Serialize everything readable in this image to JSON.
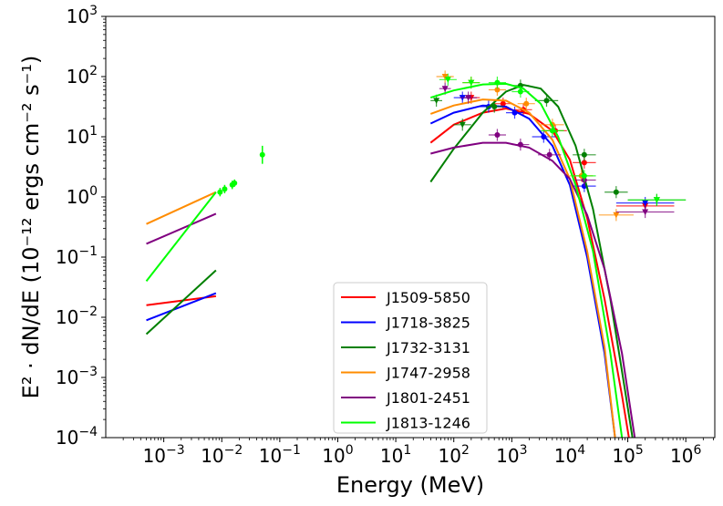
{
  "chart_data": {
    "type": "line",
    "xscale": "log",
    "yscale": "log",
    "xlim_exp": [
      -4,
      6.5
    ],
    "ylim_exp": [
      -4,
      3
    ],
    "xlabel": "Energy (MeV)",
    "ylabel": "E² · dN/dE (10⁻¹² ergs cm⁻² s⁻¹)",
    "x_ticks": [
      {
        "exp": -3,
        "base": "10",
        "sup": "−3"
      },
      {
        "exp": -2,
        "base": "10",
        "sup": "−2"
      },
      {
        "exp": -1,
        "base": "10",
        "sup": "−1"
      },
      {
        "exp": 0,
        "base": "10",
        "sup": "0"
      },
      {
        "exp": 1,
        "base": "10",
        "sup": "1"
      },
      {
        "exp": 2,
        "base": "10",
        "sup": "2"
      },
      {
        "exp": 3,
        "base": "10",
        "sup": "3"
      },
      {
        "exp": 4,
        "base": "10",
        "sup": "4"
      },
      {
        "exp": 5,
        "base": "10",
        "sup": "5"
      },
      {
        "exp": 6,
        "base": "10",
        "sup": "6"
      }
    ],
    "y_ticks": [
      {
        "exp": -4,
        "base": "10",
        "sup": "−4"
      },
      {
        "exp": -3,
        "base": "10",
        "sup": "−3"
      },
      {
        "exp": -2,
        "base": "10",
        "sup": "−2"
      },
      {
        "exp": -1,
        "base": "10",
        "sup": "−1"
      },
      {
        "exp": 0,
        "base": "10",
        "sup": "0"
      },
      {
        "exp": 1,
        "base": "10",
        "sup": "1"
      },
      {
        "exp": 2,
        "base": "10",
        "sup": "2"
      },
      {
        "exp": 3,
        "base": "10",
        "sup": "3"
      }
    ],
    "legend_position": "lower-center",
    "series": [
      {
        "name": "J1509-5850",
        "color": "#ff0000",
        "radio": [
          [
            -3.3,
            -1.8
          ],
          [
            -2.1,
            -1.65
          ]
        ],
        "gamma": [
          [
            1.6,
            0.9
          ],
          [
            2.0,
            1.2
          ],
          [
            2.5,
            1.4
          ],
          [
            2.9,
            1.47
          ],
          [
            3.3,
            1.38
          ],
          [
            3.7,
            1.1
          ],
          [
            4.0,
            0.62
          ],
          [
            4.3,
            -0.35
          ],
          [
            4.6,
            -1.7
          ],
          [
            4.9,
            -3.3
          ],
          [
            5.02,
            -4.0
          ]
        ],
        "points": [
          [
            2.3,
            1.65,
            0.15,
            0.1,
            "v"
          ],
          [
            2.85,
            1.55,
            0.15,
            0.1,
            "o"
          ],
          [
            3.2,
            1.45,
            0.15,
            0.1,
            "o"
          ],
          [
            3.75,
            1.1,
            0.2,
            0.1,
            "o"
          ],
          [
            4.25,
            0.57,
            0.2,
            0.1,
            "o"
          ],
          [
            5.3,
            -0.15,
            0.5,
            0.1,
            "v"
          ]
        ]
      },
      {
        "name": "J1718-3825",
        "color": "#0000ff",
        "radio": [
          [
            -3.3,
            -2.05
          ],
          [
            -2.1,
            -1.6
          ]
        ],
        "gamma": [
          [
            1.6,
            1.22
          ],
          [
            2.0,
            1.4
          ],
          [
            2.5,
            1.52
          ],
          [
            2.9,
            1.5
          ],
          [
            3.3,
            1.3
          ],
          [
            3.7,
            0.85
          ],
          [
            4.0,
            0.2
          ],
          [
            4.3,
            -1.0
          ],
          [
            4.6,
            -2.6
          ],
          [
            4.78,
            -4.0
          ]
        ],
        "points": [
          [
            2.15,
            1.65,
            0.15,
            0.1,
            "v"
          ],
          [
            2.6,
            1.5,
            0.15,
            0.1,
            "o"
          ],
          [
            3.05,
            1.4,
            0.15,
            0.1,
            "o"
          ],
          [
            3.55,
            1.0,
            0.2,
            0.1,
            "o"
          ],
          [
            4.25,
            0.18,
            0.2,
            0.1,
            "o"
          ],
          [
            5.3,
            -0.1,
            0.5,
            0.1,
            "v"
          ]
        ]
      },
      {
        "name": "J1732-3131",
        "color": "#008000",
        "radio": [
          [
            -3.3,
            -2.28
          ],
          [
            -2.1,
            -1.22
          ]
        ],
        "gamma": [
          [
            1.6,
            0.25
          ],
          [
            2.0,
            0.8
          ],
          [
            2.5,
            1.4
          ],
          [
            2.9,
            1.75
          ],
          [
            3.2,
            1.86
          ],
          [
            3.5,
            1.8
          ],
          [
            3.8,
            1.5
          ],
          [
            4.1,
            0.85
          ],
          [
            4.4,
            -0.2
          ],
          [
            4.7,
            -1.7
          ],
          [
            4.95,
            -3.2
          ],
          [
            5.08,
            -4.0
          ]
        ],
        "points": [
          [
            1.7,
            1.6,
            0.1,
            0.1,
            "v"
          ],
          [
            2.15,
            1.2,
            0.15,
            0.1,
            "v"
          ],
          [
            2.7,
            1.5,
            0.15,
            0.1,
            "o"
          ],
          [
            3.15,
            1.85,
            0.15,
            0.1,
            "o"
          ],
          [
            3.6,
            1.6,
            0.2,
            0.1,
            "o"
          ],
          [
            4.25,
            0.7,
            0.2,
            0.1,
            "o"
          ],
          [
            4.8,
            0.08,
            0.2,
            0.1,
            "o"
          ],
          [
            5.5,
            -0.05,
            0.5,
            0.1,
            "v"
          ]
        ]
      },
      {
        "name": "J1747-2958",
        "color": "#ff8c00",
        "radio": [
          [
            -3.3,
            -0.45
          ],
          [
            -2.1,
            0.08
          ]
        ],
        "gamma": [
          [
            1.6,
            1.38
          ],
          [
            2.0,
            1.52
          ],
          [
            2.5,
            1.62
          ],
          [
            2.9,
            1.6
          ],
          [
            3.3,
            1.4
          ],
          [
            3.7,
            0.95
          ],
          [
            4.0,
            0.3
          ],
          [
            4.3,
            -0.9
          ],
          [
            4.6,
            -2.5
          ],
          [
            4.78,
            -4.0
          ]
        ],
        "points": [
          [
            1.85,
            2.0,
            0.15,
            0.1,
            "v"
          ],
          [
            2.3,
            1.9,
            0.15,
            0.1,
            "v"
          ],
          [
            2.75,
            1.78,
            0.15,
            0.1,
            "o"
          ],
          [
            3.25,
            1.55,
            0.15,
            0.1,
            "o"
          ],
          [
            3.7,
            1.2,
            0.2,
            0.1,
            "o"
          ],
          [
            4.2,
            0.35,
            0.2,
            0.1,
            "o"
          ],
          [
            4.8,
            -0.3,
            0.3,
            0.1,
            "v"
          ]
        ]
      },
      {
        "name": "J1801-2451",
        "color": "#800080",
        "radio": [
          [
            -3.3,
            -0.78
          ],
          [
            -2.1,
            -0.28
          ]
        ],
        "gamma": [
          [
            1.6,
            0.72
          ],
          [
            2.0,
            0.82
          ],
          [
            2.5,
            0.9
          ],
          [
            2.9,
            0.9
          ],
          [
            3.3,
            0.82
          ],
          [
            3.7,
            0.6
          ],
          [
            4.0,
            0.3
          ],
          [
            4.3,
            -0.3
          ],
          [
            4.6,
            -1.2
          ],
          [
            4.9,
            -2.6
          ],
          [
            5.12,
            -4.0
          ]
        ],
        "points": [
          [
            1.85,
            1.8,
            0.1,
            0.1,
            "v"
          ],
          [
            2.25,
            1.65,
            0.15,
            0.1,
            "v"
          ],
          [
            2.75,
            1.03,
            0.15,
            0.1,
            "o"
          ],
          [
            3.15,
            0.87,
            0.15,
            0.1,
            "o"
          ],
          [
            3.65,
            0.7,
            0.2,
            0.1,
            "o"
          ],
          [
            4.25,
            0.28,
            0.2,
            0.1,
            "o"
          ],
          [
            5.3,
            -0.25,
            0.5,
            0.1,
            "v"
          ]
        ]
      },
      {
        "name": "J1813-1246",
        "color": "#00ff00",
        "radio": [
          [
            -3.3,
            -1.4
          ],
          [
            -2.1,
            0.08
          ]
        ],
        "gamma": [
          [
            1.6,
            1.65
          ],
          [
            2.0,
            1.77
          ],
          [
            2.5,
            1.87
          ],
          [
            2.9,
            1.88
          ],
          [
            3.2,
            1.8
          ],
          [
            3.5,
            1.55
          ],
          [
            3.8,
            1.0
          ],
          [
            4.1,
            0.2
          ],
          [
            4.4,
            -0.9
          ],
          [
            4.7,
            -2.6
          ],
          [
            4.9,
            -4.0
          ]
        ],
        "points": [
          [
            1.9,
            1.95,
            0.15,
            0.1,
            "v"
          ],
          [
            2.3,
            1.9,
            0.15,
            0.1,
            "v"
          ],
          [
            2.75,
            1.9,
            0.15,
            0.1,
            "o"
          ],
          [
            3.15,
            1.75,
            0.15,
            0.1,
            "o"
          ],
          [
            3.7,
            1.1,
            0.2,
            0.1,
            "o"
          ],
          [
            4.25,
            0.35,
            0.2,
            0.1,
            "o"
          ],
          [
            5.5,
            -0.05,
            0.5,
            0.1,
            "v"
          ]
        ],
        "extra_points": [
          [
            -2.03,
            0.08,
            0.07
          ],
          [
            -1.95,
            0.13,
            0.07
          ],
          [
            -1.82,
            0.2,
            0.07
          ],
          [
            -1.78,
            0.23,
            0.06
          ],
          [
            -1.3,
            0.7,
            0.15
          ]
        ]
      }
    ]
  }
}
